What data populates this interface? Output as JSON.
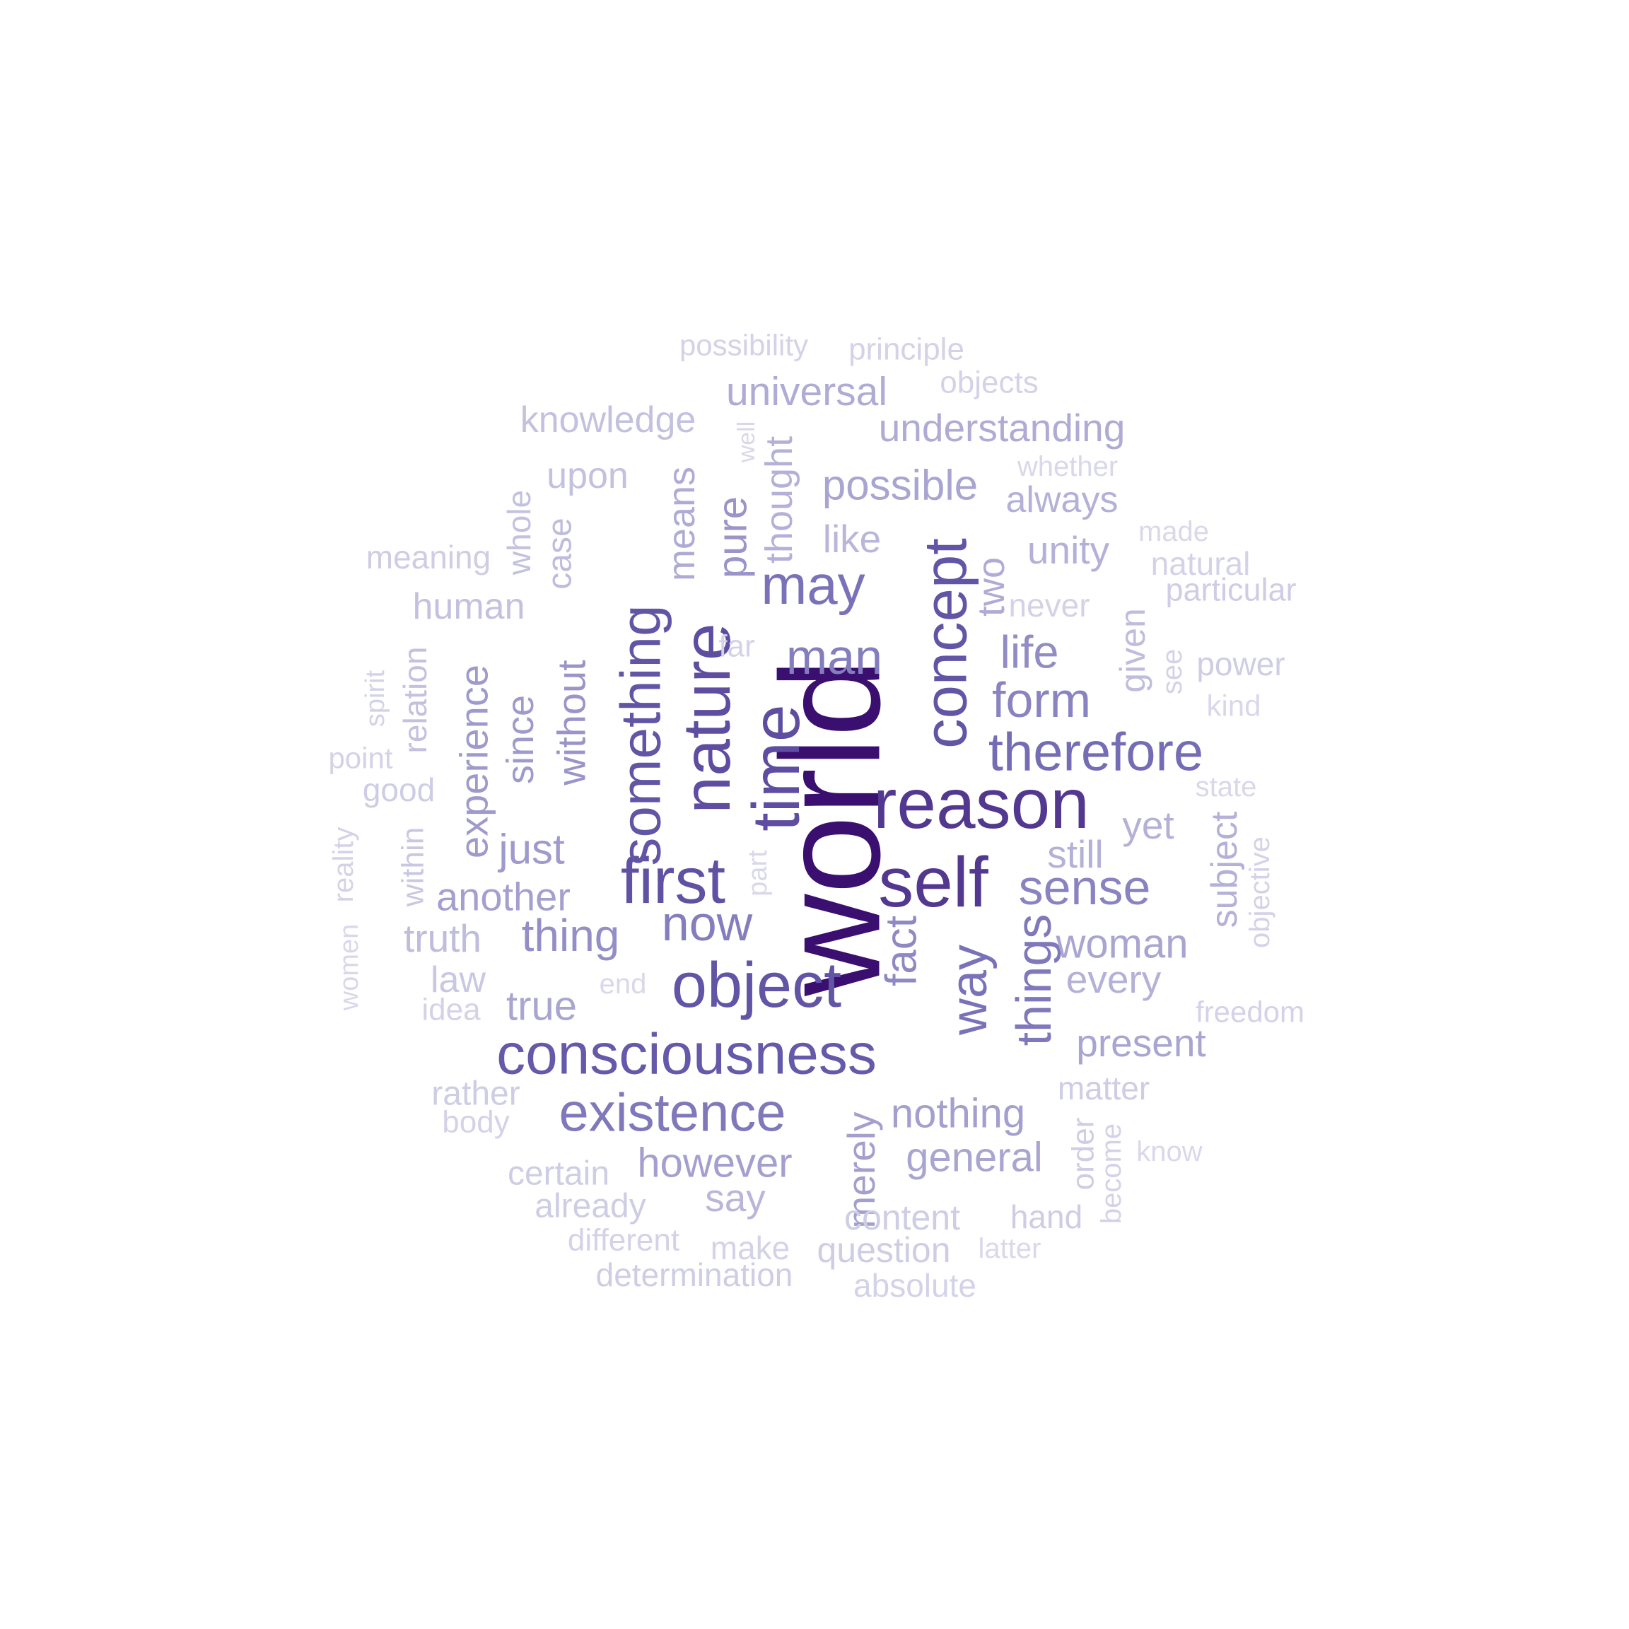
{
  "words": [
    {
      "text": "world",
      "weight": 1.0
    },
    {
      "text": "reason",
      "weight": 0.8
    },
    {
      "text": "self",
      "weight": 0.8
    },
    {
      "text": "time",
      "weight": 0.7
    },
    {
      "text": "nature",
      "weight": 0.7
    },
    {
      "text": "first",
      "weight": 0.68
    },
    {
      "text": "something",
      "weight": 0.66
    },
    {
      "text": "concept",
      "weight": 0.66
    },
    {
      "text": "object",
      "weight": 0.66
    },
    {
      "text": "consciousness",
      "weight": 0.64
    },
    {
      "text": "therefore",
      "weight": 0.56
    },
    {
      "text": "may",
      "weight": 0.54
    },
    {
      "text": "way",
      "weight": 0.54
    },
    {
      "text": "things",
      "weight": 0.52
    },
    {
      "text": "existence",
      "weight": 0.52
    },
    {
      "text": "now",
      "weight": 0.5
    },
    {
      "text": "man",
      "weight": 0.5
    },
    {
      "text": "form",
      "weight": 0.48
    },
    {
      "text": "sense",
      "weight": 0.48
    },
    {
      "text": "fact",
      "weight": 0.46
    },
    {
      "text": "life",
      "weight": 0.45
    },
    {
      "text": "thing",
      "weight": 0.44
    },
    {
      "text": "pure",
      "weight": 0.42
    },
    {
      "text": "without",
      "weight": 0.42
    },
    {
      "text": "experience",
      "weight": 0.4
    },
    {
      "text": "since",
      "weight": 0.4
    },
    {
      "text": "just",
      "weight": 0.4
    },
    {
      "text": "another",
      "weight": 0.38
    },
    {
      "text": "merely",
      "weight": 0.38
    },
    {
      "text": "nothing",
      "weight": 0.38
    },
    {
      "text": "however",
      "weight": 0.38
    },
    {
      "text": "general",
      "weight": 0.36
    },
    {
      "text": "true",
      "weight": 0.36
    },
    {
      "text": "possible",
      "weight": 0.36
    },
    {
      "text": "woman",
      "weight": 0.36
    },
    {
      "text": "present",
      "weight": 0.36
    },
    {
      "text": "means",
      "weight": 0.34
    },
    {
      "text": "two",
      "weight": 0.34
    },
    {
      "text": "universal",
      "weight": 0.34
    },
    {
      "text": "understanding",
      "weight": 0.34
    },
    {
      "text": "yet",
      "weight": 0.32
    },
    {
      "text": "still",
      "weight": 0.32
    },
    {
      "text": "every",
      "weight": 0.32
    },
    {
      "text": "subject",
      "weight": 0.32
    },
    {
      "text": "thought",
      "weight": 0.32
    },
    {
      "text": "unity",
      "weight": 0.32
    },
    {
      "text": "always",
      "weight": 0.32
    },
    {
      "text": "like",
      "weight": 0.3
    },
    {
      "text": "say",
      "weight": 0.3
    },
    {
      "text": "truth",
      "weight": 0.28
    },
    {
      "text": "given",
      "weight": 0.28
    },
    {
      "text": "case",
      "weight": 0.28
    },
    {
      "text": "whole",
      "weight": 0.26
    },
    {
      "text": "relation",
      "weight": 0.26
    },
    {
      "text": "human",
      "weight": 0.26
    },
    {
      "text": "upon",
      "weight": 0.26
    },
    {
      "text": "knowledge",
      "weight": 0.26
    },
    {
      "text": "within",
      "weight": 0.24
    },
    {
      "text": "law",
      "weight": 0.24
    },
    {
      "text": "good",
      "weight": 0.22
    },
    {
      "text": "content",
      "weight": 0.22
    },
    {
      "text": "question",
      "weight": 0.22
    },
    {
      "text": "certain",
      "weight": 0.22
    },
    {
      "text": "already",
      "weight": 0.22
    },
    {
      "text": "rather",
      "weight": 0.22
    },
    {
      "text": "order",
      "weight": 0.22
    },
    {
      "text": "matter",
      "weight": 0.22
    },
    {
      "text": "determination",
      "weight": 0.22
    },
    {
      "text": "meaning",
      "weight": 0.22
    },
    {
      "text": "particular",
      "weight": 0.22
    },
    {
      "text": "power",
      "weight": 0.22
    },
    {
      "text": "hand",
      "weight": 0.22
    },
    {
      "text": "principle",
      "weight": 0.2
    },
    {
      "text": "possibility",
      "weight": 0.2
    },
    {
      "text": "objects",
      "weight": 0.2
    },
    {
      "text": "natural",
      "weight": 0.2
    },
    {
      "text": "never",
      "weight": 0.2
    },
    {
      "text": "far",
      "weight": 0.2
    },
    {
      "text": "see",
      "weight": 0.2
    },
    {
      "text": "reality",
      "weight": 0.2
    },
    {
      "text": "point",
      "weight": 0.2
    },
    {
      "text": "spirit",
      "weight": 0.2
    },
    {
      "text": "idea",
      "weight": 0.2
    },
    {
      "text": "body",
      "weight": 0.2
    },
    {
      "text": "objective",
      "weight": 0.2
    },
    {
      "text": "freedom",
      "weight": 0.2
    },
    {
      "text": "make",
      "weight": 0.2
    },
    {
      "text": "different",
      "weight": 0.2
    },
    {
      "text": "absolute",
      "weight": 0.2
    },
    {
      "text": "become",
      "weight": 0.2
    },
    {
      "text": "whether",
      "weight": 0.18
    },
    {
      "text": "made",
      "weight": 0.18
    },
    {
      "text": "kind",
      "weight": 0.18
    },
    {
      "text": "state",
      "weight": 0.18
    },
    {
      "text": "women",
      "weight": 0.18
    },
    {
      "text": "part",
      "weight": 0.18
    },
    {
      "text": "well",
      "weight": 0.18
    },
    {
      "text": "end",
      "weight": 0.18
    },
    {
      "text": "know",
      "weight": 0.18
    },
    {
      "text": "latter",
      "weight": 0.18
    }
  ],
  "colors": {
    "darkest": "#3b0f70",
    "lightest": "#d9d8ea",
    "background": "#ffffff"
  }
}
